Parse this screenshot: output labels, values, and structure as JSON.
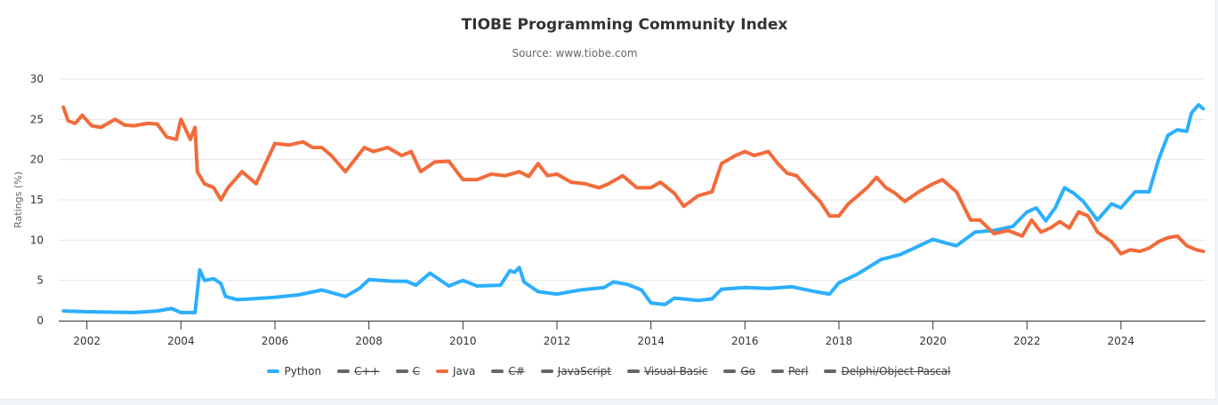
{
  "chart_data": {
    "type": "line",
    "title": "TIOBE Programming Community Index",
    "subtitle": "Source: www.tiobe.com",
    "xlabel": "",
    "ylabel": "Ratings (%)",
    "xlim": [
      2001.4,
      2025.8
    ],
    "ylim": [
      0,
      30
    ],
    "y_ticks": [
      0,
      5,
      10,
      15,
      20,
      25,
      30
    ],
    "x_ticks": [
      2002,
      2004,
      2006,
      2008,
      2010,
      2012,
      2014,
      2016,
      2018,
      2020,
      2022,
      2024
    ],
    "grid": "horizontal",
    "legend_position": "bottom",
    "series": [
      {
        "name": "Python",
        "color": "#2caffe",
        "visible": true,
        "points": [
          [
            2001.5,
            1.2
          ],
          [
            2002.0,
            1.1
          ],
          [
            2003.0,
            1.0
          ],
          [
            2003.5,
            1.2
          ],
          [
            2003.8,
            1.5
          ],
          [
            2004.0,
            1.0
          ],
          [
            2004.3,
            1.0
          ],
          [
            2004.4,
            6.3
          ],
          [
            2004.5,
            5.0
          ],
          [
            2004.7,
            5.2
          ],
          [
            2004.85,
            4.6
          ],
          [
            2004.95,
            3.0
          ],
          [
            2005.2,
            2.6
          ],
          [
            2005.5,
            2.7
          ],
          [
            2006.0,
            2.9
          ],
          [
            2006.5,
            3.2
          ],
          [
            2007.0,
            3.8
          ],
          [
            2007.5,
            3.0
          ],
          [
            2007.8,
            4.0
          ],
          [
            2008.0,
            5.1
          ],
          [
            2008.5,
            4.9
          ],
          [
            2008.8,
            4.9
          ],
          [
            2009.0,
            4.4
          ],
          [
            2009.3,
            5.9
          ],
          [
            2009.7,
            4.3
          ],
          [
            2010.0,
            5.0
          ],
          [
            2010.3,
            4.3
          ],
          [
            2010.8,
            4.4
          ],
          [
            2011.0,
            6.2
          ],
          [
            2011.1,
            6.0
          ],
          [
            2011.2,
            6.6
          ],
          [
            2011.3,
            4.8
          ],
          [
            2011.6,
            3.6
          ],
          [
            2012.0,
            3.3
          ],
          [
            2012.5,
            3.8
          ],
          [
            2013.0,
            4.1
          ],
          [
            2013.2,
            4.8
          ],
          [
            2013.5,
            4.5
          ],
          [
            2013.8,
            3.8
          ],
          [
            2014.0,
            2.2
          ],
          [
            2014.3,
            2.0
          ],
          [
            2014.5,
            2.8
          ],
          [
            2015.0,
            2.5
          ],
          [
            2015.3,
            2.7
          ],
          [
            2015.5,
            3.9
          ],
          [
            2016.0,
            4.1
          ],
          [
            2016.5,
            4.0
          ],
          [
            2017.0,
            4.2
          ],
          [
            2017.5,
            3.6
          ],
          [
            2017.8,
            3.3
          ],
          [
            2018.0,
            4.7
          ],
          [
            2018.4,
            5.8
          ],
          [
            2018.9,
            7.6
          ],
          [
            2019.3,
            8.2
          ],
          [
            2019.6,
            9.0
          ],
          [
            2020.0,
            10.1
          ],
          [
            2020.3,
            9.6
          ],
          [
            2020.5,
            9.3
          ],
          [
            2020.9,
            11.0
          ],
          [
            2021.3,
            11.2
          ],
          [
            2021.7,
            11.7
          ],
          [
            2022.0,
            13.5
          ],
          [
            2022.2,
            14.0
          ],
          [
            2022.4,
            12.4
          ],
          [
            2022.6,
            14.0
          ],
          [
            2022.8,
            16.5
          ],
          [
            2023.0,
            15.8
          ],
          [
            2023.2,
            14.8
          ],
          [
            2023.5,
            12.5
          ],
          [
            2023.8,
            14.5
          ],
          [
            2024.0,
            14.0
          ],
          [
            2024.3,
            16.0
          ],
          [
            2024.6,
            16.0
          ],
          [
            2024.8,
            20.0
          ],
          [
            2025.0,
            23.0
          ],
          [
            2025.2,
            23.7
          ],
          [
            2025.4,
            23.5
          ],
          [
            2025.5,
            25.8
          ],
          [
            2025.65,
            26.8
          ],
          [
            2025.75,
            26.3
          ]
        ]
      },
      {
        "name": "C++",
        "color": "#666666",
        "visible": false,
        "points": []
      },
      {
        "name": "C",
        "color": "#666666",
        "visible": false,
        "points": []
      },
      {
        "name": "Java",
        "color": "#f26b3a",
        "visible": true,
        "points": [
          [
            2001.5,
            26.5
          ],
          [
            2001.6,
            24.8
          ],
          [
            2001.75,
            24.5
          ],
          [
            2001.9,
            25.5
          ],
          [
            2002.1,
            24.2
          ],
          [
            2002.3,
            24.0
          ],
          [
            2002.6,
            25.0
          ],
          [
            2002.8,
            24.3
          ],
          [
            2003.0,
            24.2
          ],
          [
            2003.3,
            24.5
          ],
          [
            2003.5,
            24.4
          ],
          [
            2003.7,
            22.8
          ],
          [
            2003.9,
            22.5
          ],
          [
            2004.0,
            25.0
          ],
          [
            2004.2,
            22.5
          ],
          [
            2004.3,
            24.0
          ],
          [
            2004.35,
            18.5
          ],
          [
            2004.5,
            17.0
          ],
          [
            2004.7,
            16.5
          ],
          [
            2004.85,
            15.0
          ],
          [
            2005.0,
            16.5
          ],
          [
            2005.3,
            18.5
          ],
          [
            2005.6,
            17.0
          ],
          [
            2005.8,
            19.5
          ],
          [
            2006.0,
            22.0
          ],
          [
            2006.3,
            21.8
          ],
          [
            2006.6,
            22.2
          ],
          [
            2006.8,
            21.5
          ],
          [
            2007.0,
            21.5
          ],
          [
            2007.2,
            20.5
          ],
          [
            2007.5,
            18.5
          ],
          [
            2007.9,
            21.5
          ],
          [
            2008.1,
            21.0
          ],
          [
            2008.4,
            21.5
          ],
          [
            2008.7,
            20.5
          ],
          [
            2008.9,
            21.0
          ],
          [
            2009.1,
            18.5
          ],
          [
            2009.4,
            19.7
          ],
          [
            2009.7,
            19.8
          ],
          [
            2010.0,
            17.5
          ],
          [
            2010.3,
            17.5
          ],
          [
            2010.6,
            18.2
          ],
          [
            2010.9,
            18.0
          ],
          [
            2011.2,
            18.5
          ],
          [
            2011.4,
            17.9
          ],
          [
            2011.6,
            19.5
          ],
          [
            2011.8,
            18.0
          ],
          [
            2012.0,
            18.2
          ],
          [
            2012.3,
            17.2
          ],
          [
            2012.6,
            17.0
          ],
          [
            2012.9,
            16.5
          ],
          [
            2013.1,
            17.0
          ],
          [
            2013.4,
            18.0
          ],
          [
            2013.7,
            16.5
          ],
          [
            2014.0,
            16.5
          ],
          [
            2014.2,
            17.2
          ],
          [
            2014.5,
            15.8
          ],
          [
            2014.7,
            14.2
          ],
          [
            2015.0,
            15.5
          ],
          [
            2015.3,
            16.0
          ],
          [
            2015.5,
            19.5
          ],
          [
            2015.8,
            20.5
          ],
          [
            2016.0,
            21.0
          ],
          [
            2016.2,
            20.5
          ],
          [
            2016.5,
            21.0
          ],
          [
            2016.7,
            19.5
          ],
          [
            2016.9,
            18.3
          ],
          [
            2017.1,
            18.0
          ],
          [
            2017.4,
            16.0
          ],
          [
            2017.6,
            14.8
          ],
          [
            2017.8,
            13.0
          ],
          [
            2018.0,
            13.0
          ],
          [
            2018.2,
            14.5
          ],
          [
            2018.4,
            15.5
          ],
          [
            2018.6,
            16.5
          ],
          [
            2018.8,
            17.8
          ],
          [
            2019.0,
            16.5
          ],
          [
            2019.2,
            15.8
          ],
          [
            2019.4,
            14.8
          ],
          [
            2019.7,
            16.0
          ],
          [
            2020.0,
            17.0
          ],
          [
            2020.2,
            17.5
          ],
          [
            2020.5,
            16.0
          ],
          [
            2020.8,
            12.5
          ],
          [
            2021.0,
            12.5
          ],
          [
            2021.3,
            10.8
          ],
          [
            2021.6,
            11.2
          ],
          [
            2021.9,
            10.5
          ],
          [
            2022.1,
            12.5
          ],
          [
            2022.3,
            11.0
          ],
          [
            2022.5,
            11.5
          ],
          [
            2022.7,
            12.3
          ],
          [
            2022.9,
            11.5
          ],
          [
            2023.1,
            13.5
          ],
          [
            2023.3,
            13.0
          ],
          [
            2023.5,
            11.0
          ],
          [
            2023.8,
            9.8
          ],
          [
            2024.0,
            8.3
          ],
          [
            2024.2,
            8.8
          ],
          [
            2024.4,
            8.6
          ],
          [
            2024.6,
            9.0
          ],
          [
            2024.8,
            9.8
          ],
          [
            2025.0,
            10.3
          ],
          [
            2025.2,
            10.5
          ],
          [
            2025.4,
            9.3
          ],
          [
            2025.6,
            8.8
          ],
          [
            2025.75,
            8.6
          ]
        ]
      },
      {
        "name": "C#",
        "color": "#666666",
        "visible": false,
        "points": []
      },
      {
        "name": "JavaScript",
        "color": "#666666",
        "visible": false,
        "points": []
      },
      {
        "name": "Visual Basic",
        "color": "#666666",
        "visible": false,
        "points": []
      },
      {
        "name": "Go",
        "color": "#666666",
        "visible": false,
        "points": []
      },
      {
        "name": "Perl",
        "color": "#666666",
        "visible": false,
        "points": []
      },
      {
        "name": "Delphi/Object Pascal",
        "color": "#666666",
        "visible": false,
        "points": []
      }
    ]
  }
}
